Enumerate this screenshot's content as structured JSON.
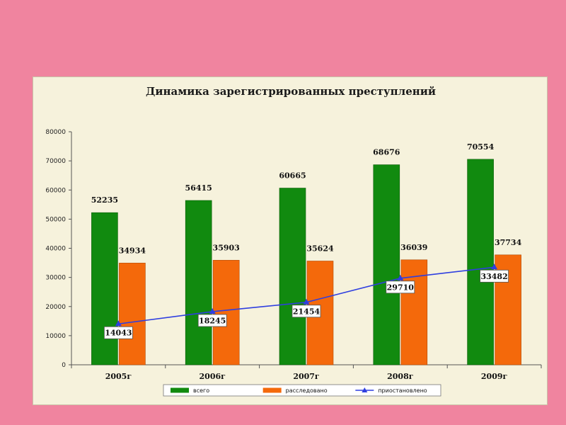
{
  "chart_data": {
    "type": "bar",
    "title": "Динамика зарегистрированных преступлений",
    "categories": [
      "2005г",
      "2006г",
      "2007г",
      "2008г",
      "2009г"
    ],
    "series": [
      {
        "name": "всего",
        "type": "bar",
        "color": "#118a0f",
        "values": [
          52235,
          56415,
          60665,
          68676,
          70554
        ]
      },
      {
        "name": "расследовано",
        "type": "bar",
        "color": "#f4690b",
        "values": [
          34934,
          35903,
          35624,
          36039,
          37734
        ]
      },
      {
        "name": "приостановлено",
        "type": "line",
        "color": "#2f3fe0",
        "values": [
          14043,
          18245,
          21454,
          29710,
          33482
        ]
      }
    ],
    "ylim": [
      0,
      80000
    ],
    "yticks": [
      "0",
      "10000",
      "20000",
      "30000",
      "40000",
      "50000",
      "60000",
      "70000",
      "80000"
    ],
    "legend_position": "bottom",
    "grid": false
  }
}
